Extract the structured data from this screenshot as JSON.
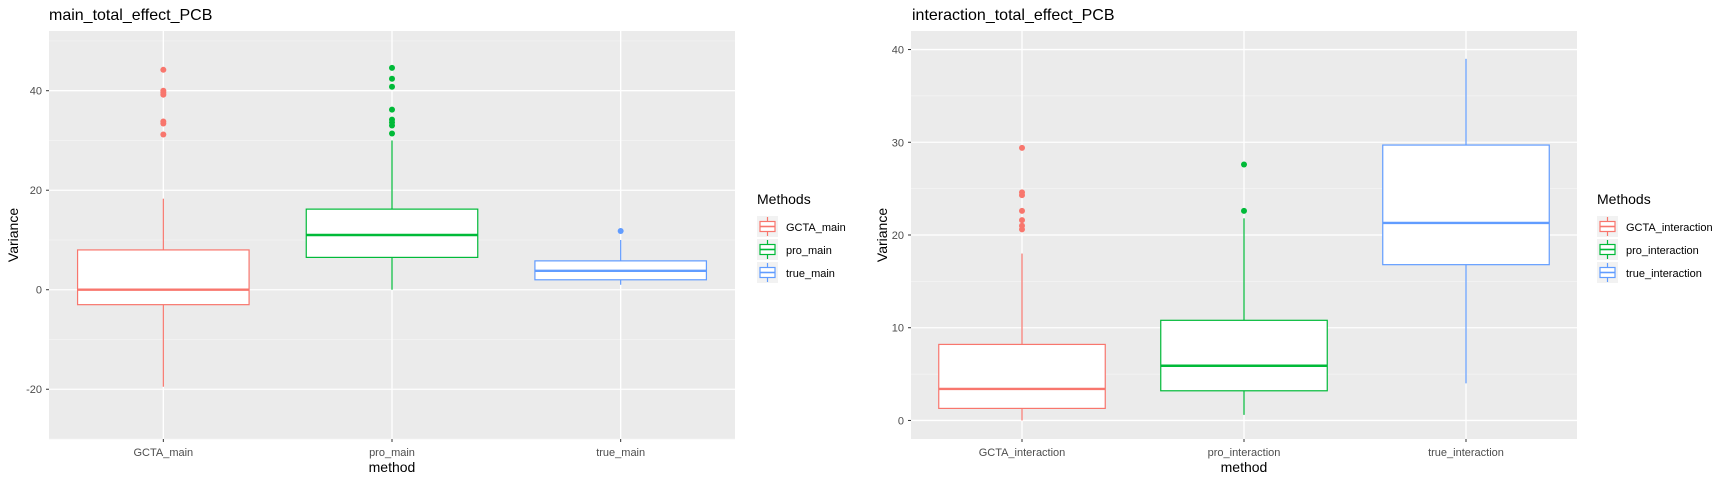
{
  "chart_data": [
    {
      "type": "box",
      "title": "main_total_effect_PCB",
      "xlabel": "method",
      "ylabel": "Variance",
      "ylim": [
        -30,
        52
      ],
      "yticks": [
        -20,
        0,
        20,
        40
      ],
      "grid": true,
      "legend": {
        "title": "Methods",
        "position": "right"
      },
      "categories": [
        "GCTA_main",
        "pro_main",
        "true_main"
      ],
      "series": [
        {
          "name": "GCTA_main",
          "color": "#F8766D",
          "whisker_low": -19.5,
          "q1": -3.0,
          "median": 0.0,
          "q3": 8.0,
          "whisker_high": 18.3,
          "outliers": [
            44.2,
            40.0,
            39.6,
            39.2,
            33.8,
            33.4,
            31.2
          ]
        },
        {
          "name": "pro_main",
          "color": "#00BA38",
          "whisker_low": 0.0,
          "q1": 6.5,
          "median": 11.0,
          "q3": 16.2,
          "whisker_high": 30.0,
          "outliers": [
            44.6,
            42.4,
            40.8,
            36.2,
            34.2,
            33.6,
            33.0,
            31.4
          ]
        },
        {
          "name": "true_main",
          "color": "#619CFF",
          "whisker_low": 1.0,
          "q1": 2.0,
          "median": 3.8,
          "q3": 5.8,
          "whisker_high": 10.0,
          "outliers": [
            11.8
          ]
        }
      ]
    },
    {
      "type": "box",
      "title": "interaction_total_effect_PCB",
      "xlabel": "method",
      "ylabel": "Variance",
      "ylim": [
        -2,
        42
      ],
      "yticks": [
        0,
        10,
        20,
        30,
        40
      ],
      "grid": true,
      "legend": {
        "title": "Methods",
        "position": "right"
      },
      "categories": [
        "GCTA_interaction",
        "pro_interaction",
        "true_interaction"
      ],
      "series": [
        {
          "name": "GCTA_interaction",
          "color": "#F8766D",
          "whisker_low": 0.0,
          "q1": 1.3,
          "median": 3.4,
          "q3": 8.2,
          "whisker_high": 18.0,
          "outliers": [
            29.4,
            24.6,
            24.3,
            22.6,
            21.6,
            21.0,
            20.6
          ]
        },
        {
          "name": "pro_interaction",
          "color": "#00BA38",
          "whisker_low": 0.6,
          "q1": 3.2,
          "median": 5.9,
          "q3": 10.8,
          "whisker_high": 21.8,
          "outliers": [
            27.6,
            22.6
          ]
        },
        {
          "name": "true_interaction",
          "color": "#619CFF",
          "whisker_low": 4.0,
          "q1": 16.8,
          "median": 21.3,
          "q3": 29.7,
          "whisker_high": 39.0,
          "outliers": []
        }
      ]
    }
  ]
}
